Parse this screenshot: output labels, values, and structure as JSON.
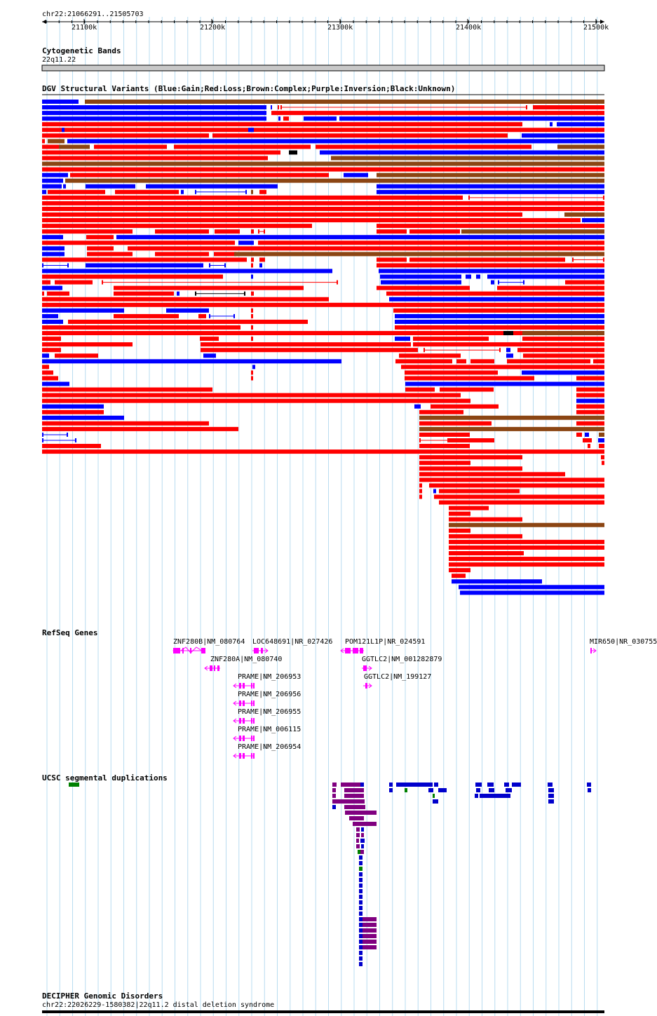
{
  "ruler": {
    "region_label": "chr22:21066291..21505703",
    "ticks": [
      "21100k",
      "21200k",
      "21300k",
      "21400k",
      "21500k"
    ]
  },
  "cytoband": {
    "title": "Cytogenetic Bands",
    "band": "22q11.22"
  },
  "dgv": {
    "title": "DGV Structural Variants (Blue:Gain;Red:Loss;Brown:Complex;Purple:Inversion;Black:Unknown)",
    "colors": {
      "gain": "#0000ff",
      "loss": "#ff0000",
      "complex": "#8b4513",
      "inversion": "#800080",
      "unknown": "#000000"
    }
  },
  "refseq": {
    "title": "RefSeq Genes",
    "gene_color": "#ff00ff",
    "genes": [
      {
        "label": "ZNF280B|NM_080764",
        "strand": "-"
      },
      {
        "label": "LOC648691|NR_027426",
        "strand": "+"
      },
      {
        "label": "POM121L1P|NR_024591",
        "strand": "-"
      },
      {
        "label": "MIR650|NR_030755",
        "strand": "+"
      },
      {
        "label": "ZNF280A|NM_080740",
        "strand": "-"
      },
      {
        "label": "GGTLC2|NM_001282879",
        "strand": "+"
      },
      {
        "label": "PRAME|NM_206953",
        "strand": "-"
      },
      {
        "label": "GGTLC2|NM_199127",
        "strand": "+"
      },
      {
        "label": "PRAME|NM_206956",
        "strand": "-"
      },
      {
        "label": "PRAME|NM_206955",
        "strand": "-"
      },
      {
        "label": "PRAME|NM_006115",
        "strand": "-"
      },
      {
        "label": "PRAME|NM_206954",
        "strand": "-"
      }
    ]
  },
  "segdups": {
    "title": "UCSC segmental duplications",
    "colors": {
      "blue": "#0000cc",
      "purple": "#800080",
      "green": "#008000"
    }
  },
  "decipher": {
    "title": "DECIPHER Genomic Disorders",
    "feature": "chr22:22026229-1580382|22q11.2 distal deletion syndrome"
  }
}
